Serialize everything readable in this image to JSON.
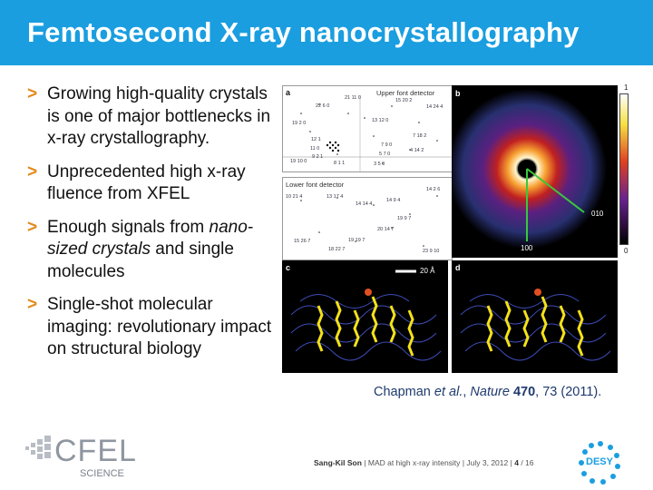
{
  "slide": {
    "title": "Femtosecond X-ray nanocrystallography",
    "bullets": [
      {
        "marker": ">",
        "text": "Growing high-quality crystals is one of major bottlenecks in x-ray crystallography."
      },
      {
        "marker": ">",
        "text": "Unprecedented high x-ray fluence from XFEL"
      },
      {
        "marker": ">",
        "pre": "Enough signals from ",
        "em": "nano-sized crystals",
        "post": " and single molecules"
      },
      {
        "marker": ">",
        "text": "Single-shot molecular imaging: revolutionary impact on structural biology"
      }
    ]
  },
  "figure": {
    "panel_labels": {
      "a": "a",
      "b": "b",
      "c": "c",
      "d": "d"
    },
    "upper_detector_label": "Upper font detector",
    "lower_detector_label": "Lower font detector",
    "upper_indices": [
      "21 11 0",
      "22 6 0",
      "15 20 2",
      "14 24 4",
      "19 2 0",
      "13 12 0",
      "7 18 2",
      "12 1",
      "11 0",
      "7 9 0",
      "9 2 1",
      "5 7 0",
      "4 14 2",
      "19 10 0",
      "8 1 1",
      "3 5 0"
    ],
    "lower_indices": [
      "14 2 6",
      "10 21 4",
      "13 17 4",
      "14 9 4",
      "14 14 4",
      "19 9 7",
      "20 14 7",
      "15 26 7",
      "19 19 7",
      "18 22 7",
      "23 9 10"
    ],
    "colorbar_max": "1",
    "colorbar_min": "0",
    "axis_label_010": "010",
    "axis_label_100": "100",
    "scale_bar_label": "20 Å",
    "colors": {
      "axis_lines": "#39c93b",
      "helix": "#f4e11a",
      "density_mesh": "#4455cc"
    }
  },
  "citation": {
    "pre": "Chapman ",
    "em": "et al.",
    "mid": ", ",
    "journal": "Nature",
    "sp": " ",
    "volume": "470",
    "post": ", 73 (2011)."
  },
  "footer": {
    "author": "Sang-Kil Son",
    "details": "MAD at high x-ray intensity",
    "date": "July 3, 2012",
    "page": "4",
    "total": "/ 16",
    "sep": "|"
  },
  "logos": {
    "cfel_text": "CFEL",
    "cfel_sub": "SCIENCE",
    "desy_text": "DESY"
  },
  "theme": {
    "title_bar": "#1a9ee0",
    "bullet_marker": "#e38a1c",
    "citation": "#1e3a6e"
  }
}
